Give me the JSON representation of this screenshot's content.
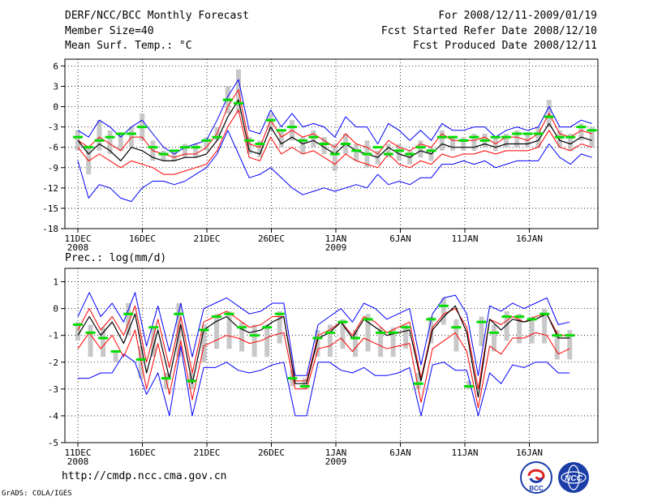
{
  "header": {
    "title": "DERF/NCC/BCC Monthly Forecast",
    "member_size": "Member Size=40",
    "forecast_range": "For 2008/12/11-2009/01/19",
    "fcst_started": "Fcst Started Refer Date 2008/12/10",
    "fcst_produced": "Fcst Produced Date 2008/12/11"
  },
  "footer": {
    "url": "http://cmdp.ncc.cma.gov.cn",
    "credit": "GrADS: COLA/IGES",
    "logo_bcc": "BCC",
    "logo_ncc": "NCC"
  },
  "colors": {
    "envelope": "#0000ff",
    "spread": "#ff0000",
    "mean": "#000000",
    "boxes": "#c8c8c8",
    "marker": "#00dd00",
    "grid": "#000000"
  },
  "chart_data": [
    {
      "type": "line",
      "title": "Mean Surf. Temp.: °C",
      "xlabel": "",
      "ylabel": "",
      "xticks": [
        "11DEC",
        "16DEC",
        "21DEC",
        "26DEC",
        "1JAN",
        "6JAN",
        "11JAN",
        "16JAN"
      ],
      "xtick_sub": [
        "2008",
        "",
        "",
        "",
        "2009",
        "",
        "",
        ""
      ],
      "ylim": [
        -18,
        7
      ],
      "yticks": [
        -18,
        -15,
        -12,
        -9,
        -6,
        -3,
        0,
        3,
        6
      ],
      "series": [
        {
          "name": "max",
          "values": [
            -3.5,
            -4.5,
            -2,
            -3,
            -4.5,
            -3,
            -2,
            -4,
            -6,
            -7,
            -6,
            -5.5,
            -5,
            -2,
            1.5,
            4,
            -3.5,
            -4,
            -0.5,
            -3,
            -1,
            -3,
            -2.5,
            -3,
            -4.5,
            -1.5,
            -3,
            -3,
            -5.5,
            -2.5,
            -3.5,
            -5,
            -3.5,
            -5,
            -2.5,
            -3.5,
            -3.5,
            -3,
            -3,
            -4.5,
            -3.5,
            -3,
            -3.5,
            -3,
            0,
            -3,
            -3,
            -2,
            -2.5
          ]
        },
        {
          "name": "upper",
          "values": [
            -5,
            -6,
            -4.5,
            -5.5,
            -6.5,
            -4.5,
            -4.5,
            -6.5,
            -7,
            -7.5,
            -7,
            -7,
            -6,
            -4,
            0,
            2.5,
            -5.5,
            -6,
            -2,
            -4.5,
            -3.5,
            -4.5,
            -4,
            -5,
            -6,
            -4,
            -5.5,
            -6,
            -7,
            -5,
            -6,
            -6.5,
            -5.5,
            -6,
            -4,
            -5,
            -5,
            -5,
            -4.5,
            -5.5,
            -4.5,
            -4.5,
            -5,
            -4,
            -1,
            -4,
            -4.5,
            -3.5,
            -4
          ]
        },
        {
          "name": "mean",
          "values": [
            -5,
            -7,
            -5.5,
            -6.5,
            -8,
            -6,
            -6.5,
            -7.5,
            -8,
            -8,
            -7.5,
            -7.5,
            -7,
            -5,
            -1.5,
            1,
            -6.5,
            -7,
            -3,
            -5.5,
            -4.5,
            -5.5,
            -5,
            -6,
            -7,
            -5.5,
            -6.5,
            -7,
            -7.5,
            -6,
            -7,
            -7.5,
            -6.5,
            -7,
            -5.5,
            -6,
            -6,
            -6,
            -5.5,
            -6,
            -5.5,
            -5.5,
            -5.5,
            -5,
            -2.5,
            -5,
            -5.5,
            -4.5,
            -5
          ]
        },
        {
          "name": "lower",
          "values": [
            -6,
            -8,
            -7,
            -8,
            -9,
            -8,
            -8.5,
            -9,
            -10,
            -10,
            -9.5,
            -9,
            -8.5,
            -6.5,
            -3,
            -0.5,
            -7.5,
            -8,
            -4.5,
            -7,
            -6,
            -7,
            -6.5,
            -7.5,
            -8.5,
            -7,
            -8,
            -8.5,
            -9,
            -7,
            -8.5,
            -9,
            -8,
            -8.5,
            -7,
            -7.5,
            -7,
            -7,
            -6.5,
            -7,
            -6.5,
            -6.5,
            -6.5,
            -6,
            -3.5,
            -6,
            -6.5,
            -5.5,
            -6
          ]
        },
        {
          "name": "min",
          "values": [
            -8,
            -13.5,
            -11.5,
            -12,
            -13.5,
            -14,
            -12,
            -11,
            -11,
            -11.5,
            -11,
            -10,
            -9,
            -7,
            -3.5,
            -7,
            -10.5,
            -10,
            -9,
            -10.5,
            -12,
            -13,
            -12.5,
            -12,
            -12.5,
            -12,
            -11.5,
            -12,
            -10,
            -11.5,
            -11,
            -11.5,
            -10.5,
            -10.5,
            -8.5,
            -8.5,
            -8,
            -8.5,
            -8,
            -9,
            -8.5,
            -8,
            -8,
            -8,
            -5.5,
            -7.5,
            -8.5,
            -7,
            -7.5
          ]
        },
        {
          "name": "marker",
          "values": [
            -4.5,
            -6,
            -5,
            -4.5,
            -4,
            -4,
            -3,
            -6,
            -7,
            -6.5,
            -6,
            -6,
            -5,
            -4.5,
            1,
            0.5,
            -5,
            -5.5,
            -2,
            -3.5,
            -3,
            -5,
            -4.5,
            -5.5,
            -7,
            -5.5,
            -6.5,
            -7,
            -6,
            -7,
            -6.5,
            -7,
            -6,
            -6.5,
            -4.5,
            -4.5,
            -5,
            -4.5,
            -5,
            -4.5,
            -4.5,
            -4,
            -4,
            -4,
            -1.5,
            -4.5,
            -4.5,
            -3,
            -3.5
          ]
        },
        {
          "name": "box_top",
          "values": [
            -3.5,
            -6,
            -2,
            -3.5,
            -4,
            -3,
            -1,
            -5,
            -6.5,
            -6.5,
            -5.5,
            -5.5,
            -4.5,
            -3,
            3,
            5.5,
            -4.5,
            -5,
            -1,
            -3.5,
            -2,
            -4.5,
            -3.5,
            -4.5,
            -5.5,
            -4,
            -5.5,
            -5,
            -6.5,
            -5.5,
            -5.5,
            -6.5,
            -5,
            -6,
            -3.5,
            -4.5,
            -4.5,
            -4,
            -4,
            -4.5,
            -4,
            -3.5,
            -4,
            -3,
            1,
            -3.5,
            -4,
            -2.5,
            -3
          ]
        },
        {
          "name": "box_bottom",
          "values": [
            -6.5,
            -10,
            -6.5,
            -7,
            -6.5,
            -6,
            -5,
            -8,
            -8,
            -8,
            -7.5,
            -7.5,
            -6.5,
            -5,
            -1,
            -1,
            -7,
            -7.5,
            -3.5,
            -6,
            -5,
            -7,
            -6,
            -7,
            -9.5,
            -7,
            -8,
            -9,
            -8.5,
            -7.5,
            -8,
            -8.5,
            -7.5,
            -8,
            -6.5,
            -6.5,
            -6.5,
            -6.5,
            -6,
            -6.5,
            -6,
            -6,
            -6,
            -6,
            -3,
            -6,
            -6.5,
            -5,
            -6
          ]
        }
      ]
    },
    {
      "type": "line",
      "title": "Prec.: log(mm/d)",
      "xlabel": "",
      "ylabel": "",
      "xticks": [
        "11DEC",
        "16DEC",
        "21DEC",
        "26DEC",
        "1JAN",
        "6JAN",
        "11JAN",
        "16JAN"
      ],
      "xtick_sub": [
        "2008",
        "",
        "",
        "",
        "2009",
        "",
        "",
        ""
      ],
      "ylim": [
        -5,
        1.5
      ],
      "yticks": [
        -5,
        -4,
        -3,
        -2,
        -1,
        0,
        1
      ],
      "series": [
        {
          "name": "max",
          "values": [
            -0.3,
            0.6,
            -0.3,
            0.2,
            -0.5,
            0.6,
            -1.4,
            0.1,
            -1.6,
            0.2,
            -1.8,
            0,
            0.2,
            0.4,
            0.1,
            -0.2,
            -0.1,
            0.2,
            0.2,
            -2.5,
            -2.5,
            -0.6,
            -0.3,
            0,
            -0.5,
            0.2,
            0,
            -0.4,
            -0.2,
            0,
            -2.1,
            -0.2,
            0.4,
            0.5,
            -0.2,
            -2.5,
            0.1,
            -0.1,
            0.2,
            0,
            0.2,
            0.4,
            -0.6,
            -0.5
          ]
        },
        {
          "name": "upper",
          "values": [
            -0.8,
            0,
            -0.8,
            -0.3,
            -1,
            0.1,
            -2,
            -0.4,
            -2.2,
            -0.3,
            -2.4,
            -0.5,
            -0.3,
            -0.1,
            -0.4,
            -0.7,
            -0.6,
            -0.3,
            -0.3,
            -2.7,
            -2.7,
            -1,
            -0.8,
            -0.5,
            -1,
            -0.3,
            -0.5,
            -0.9,
            -0.7,
            -0.5,
            -2.6,
            -0.7,
            -0.2,
            0,
            -0.7,
            -3,
            -0.4,
            -0.6,
            -0.3,
            -0.5,
            -0.3,
            -0.2,
            -1,
            -1
          ]
        },
        {
          "name": "mean",
          "values": [
            -1,
            -0.3,
            -1,
            -0.5,
            -1.3,
            -0.2,
            -2.4,
            -0.8,
            -2.6,
            -0.6,
            -2.8,
            -0.8,
            -0.5,
            -0.3,
            -0.7,
            -0.9,
            -0.8,
            -0.5,
            -0.3,
            -2.8,
            -2.8,
            -1.1,
            -0.9,
            -0.5,
            -1.1,
            -0.4,
            -0.7,
            -1,
            -0.9,
            -0.8,
            -2.7,
            -0.8,
            -0.3,
            0.1,
            -0.9,
            -3.3,
            -0.4,
            -0.8,
            -0.4,
            -0.5,
            -0.4,
            -0.2,
            -1.1,
            -1.1
          ]
        },
        {
          "name": "lower",
          "values": [
            -1.5,
            -0.9,
            -1.5,
            -1,
            -1.8,
            -0.8,
            -3,
            -1.3,
            -3.2,
            -1.2,
            -3.4,
            -1.4,
            -1.2,
            -1,
            -1.1,
            -1.3,
            -1.2,
            -1,
            -0.9,
            -3,
            -3,
            -1.5,
            -1.4,
            -1.1,
            -1.6,
            -1.1,
            -1.3,
            -1.5,
            -1.4,
            -1.3,
            -3.5,
            -1.5,
            -1.2,
            -0.9,
            -1.6,
            -3.7,
            -1.4,
            -1.7,
            -1.1,
            -1.1,
            -0.9,
            -1,
            -1.7,
            -1.5
          ]
        },
        {
          "name": "min",
          "values": [
            -2.6,
            -2.6,
            -2.4,
            -2.4,
            -1.7,
            -2,
            -3.2,
            -2.4,
            -4,
            -1.4,
            -4,
            -2.2,
            -2.2,
            -2,
            -2.3,
            -2.4,
            -2.3,
            -2.1,
            -2,
            -4,
            -4,
            -2,
            -2,
            -2.3,
            -2.4,
            -2.2,
            -2.5,
            -2.5,
            -2.4,
            -2.2,
            -4,
            -2.1,
            -2,
            -2.3,
            -2.3,
            -4,
            -2.4,
            -2.8,
            -2.1,
            -2.2,
            -2,
            -2,
            -2.4,
            -2.4
          ]
        },
        {
          "name": "marker",
          "values": [
            -0.6,
            -0.9,
            -1.1,
            -1.6,
            -0.2,
            -1.9,
            -0.7,
            -2.6,
            -0.2,
            -2.7,
            -0.8,
            -0.3,
            -0.2,
            -0.7,
            -1,
            -0.7,
            -0.2,
            -2.6,
            -2.9,
            -1.1,
            -0.9,
            -0.5,
            -1.1,
            -0.4,
            -0.9,
            -0.9,
            -0.7,
            -2.8,
            -0.4,
            0.1,
            -0.7,
            -2.9,
            -0.5,
            -0.9,
            -0.3,
            -0.3,
            -0.4,
            -0.2,
            -1,
            -1
          ]
        },
        {
          "name": "box_top",
          "values": [
            -0.5,
            -0.6,
            -0.7,
            -1.6,
            0.2,
            -1.4,
            -0.7,
            -2.4,
            0.2,
            -2.4,
            -0.6,
            -0.2,
            -0.1,
            -0.5,
            -0.6,
            -0.6,
            -0.1,
            -2.3,
            -2.6,
            -0.8,
            -0.6,
            -0.4,
            -0.8,
            -0.2,
            -0.7,
            -0.7,
            -0.6,
            -2.4,
            -0.3,
            0.4,
            -0.4,
            -2.7,
            -0.3,
            -0.6,
            -0.1,
            -0.2,
            -0.3,
            0,
            -0.8,
            -0.8
          ]
        },
        {
          "name": "box_bottom",
          "values": [
            -1.2,
            -1.8,
            -1.8,
            -2,
            -1,
            -2.6,
            -1.8,
            -3,
            -1.8,
            -3,
            -2,
            -1.5,
            -1.5,
            -1.6,
            -1.8,
            -1.8,
            -1.3,
            -2.9,
            -3,
            -1.8,
            -1.8,
            -1.5,
            -1.8,
            -1.6,
            -1.8,
            -1.8,
            -1.5,
            -3,
            -1.3,
            -0.6,
            -1.6,
            -3,
            -1.4,
            -1.6,
            -1.2,
            -1.3,
            -1.3,
            -1.3,
            -1.9,
            -1.9
          ]
        }
      ]
    }
  ]
}
